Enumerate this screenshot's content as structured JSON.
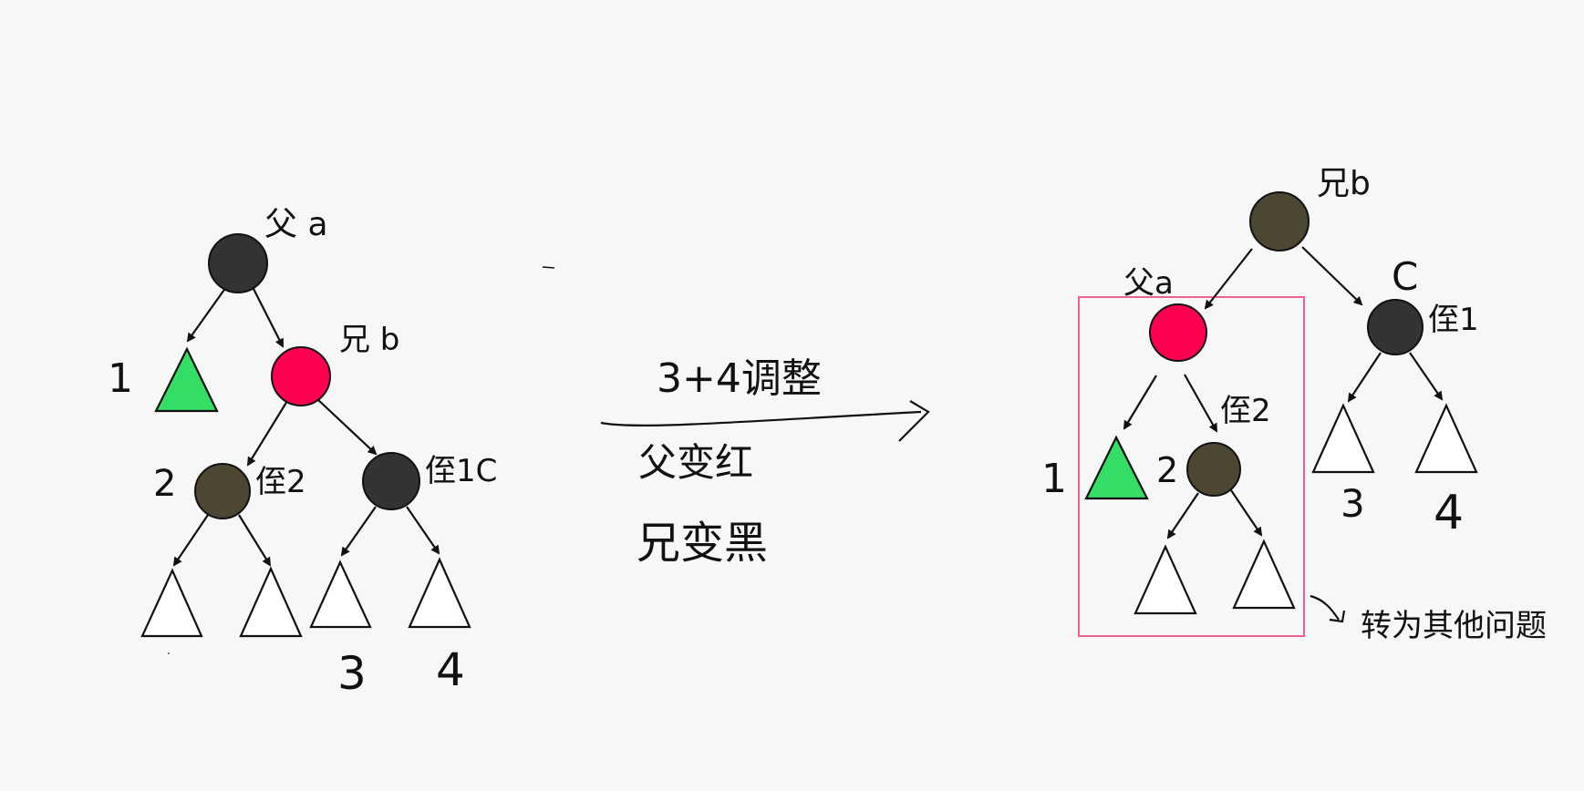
{
  "colors": {
    "background": "#f7f7f7",
    "red_node": "#ff0050",
    "black_node": "#333333",
    "brown_node": "#4d4633",
    "green_subtree": "#33dd66",
    "white_subtree": "#ffffff",
    "highlight_box": "#f06090"
  },
  "left_tree": {
    "parent_label": "父 a",
    "uncle_number": "1",
    "brother_label": "兄 b",
    "nephew2_number": "2",
    "nephew2_label": "侄2",
    "nephew1_label": "侄1C",
    "leaf3_number": "3",
    "leaf4_number": "4"
  },
  "transform": {
    "arrow_label": "3+4调整",
    "note_line1": "父变红",
    "note_line2": "兄变黑"
  },
  "right_tree": {
    "root_label": "兄b",
    "parent_label": "父a",
    "nephew1_c": "C",
    "nephew1_label": "侄1",
    "nephew2_label": "侄2",
    "subtree1_number": "1",
    "nephew2_number": "2",
    "leaf3_number": "3",
    "leaf4_number": "4",
    "box_note": "转为其他问题"
  }
}
